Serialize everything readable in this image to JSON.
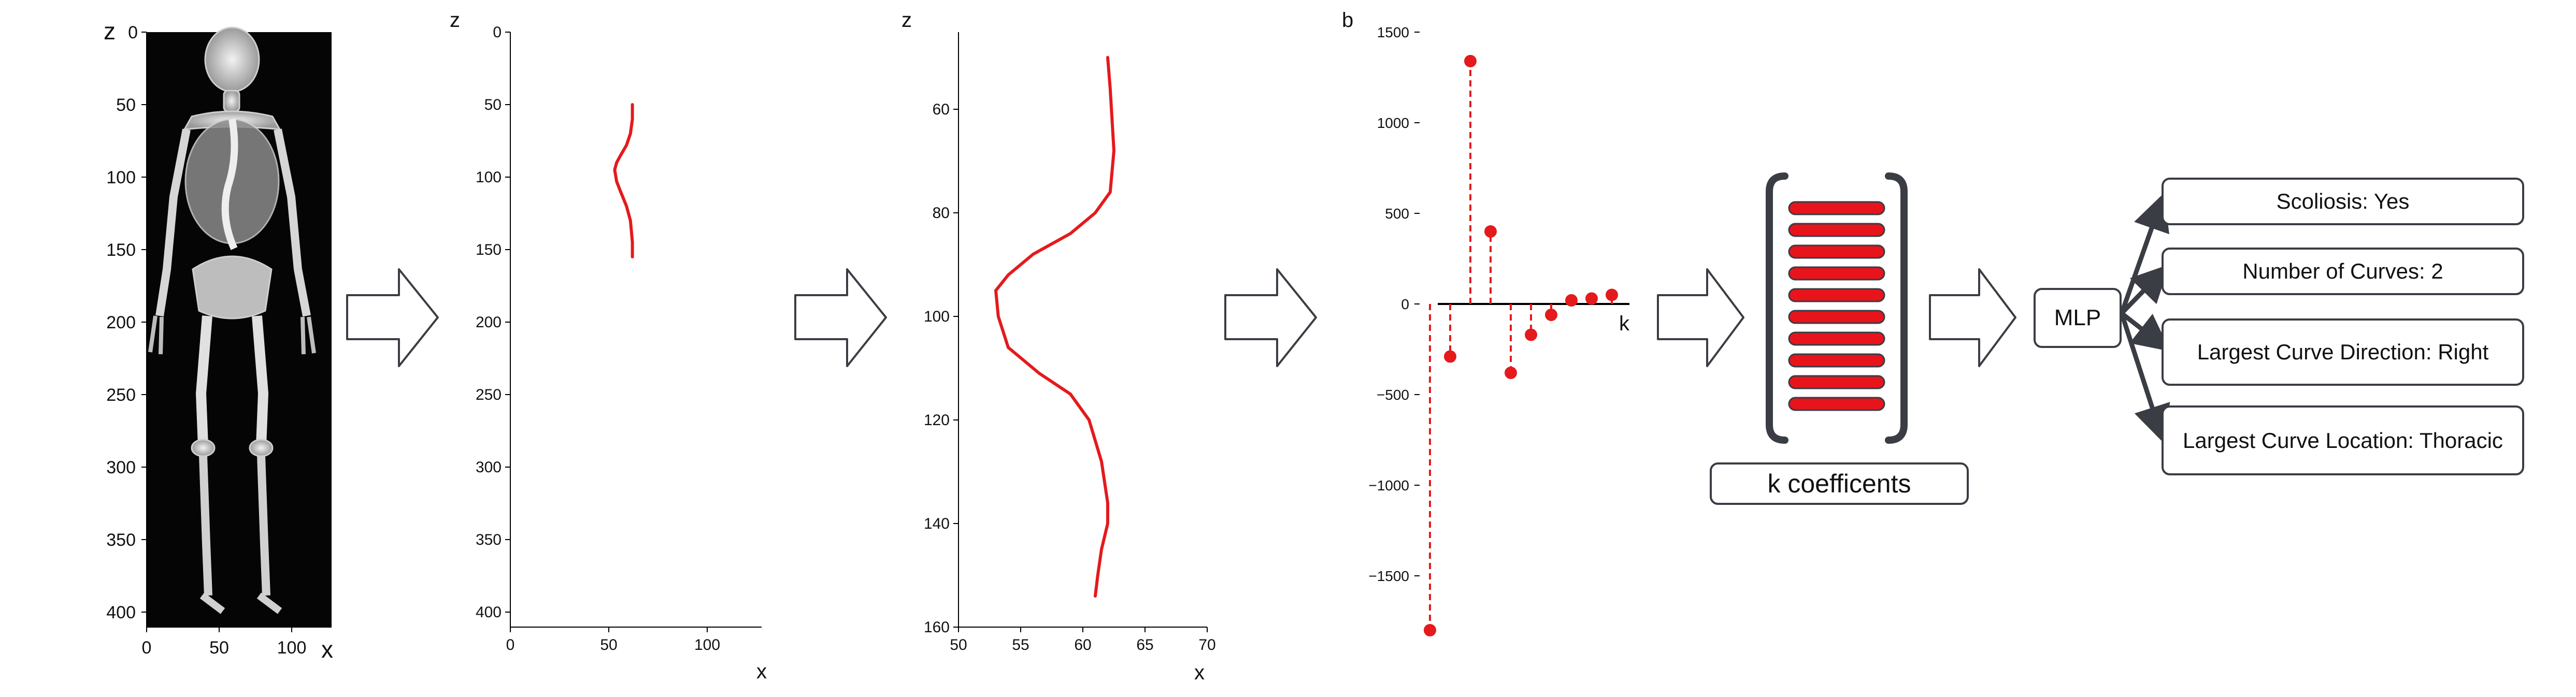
{
  "panel_label": "b",
  "scan": {
    "z_label": "z",
    "x_label": "x",
    "y_ticks": [
      "0",
      "50",
      "100",
      "150",
      "200",
      "250",
      "300",
      "350",
      "400"
    ],
    "x_ticks": [
      "0",
      "50",
      "100"
    ]
  },
  "spine_full": {
    "z_label": "z",
    "x_label": "x",
    "y_ticks": [
      "0",
      "50",
      "100",
      "150",
      "200",
      "250",
      "300",
      "350",
      "400"
    ],
    "x_ticks": [
      "0",
      "50",
      "100"
    ]
  },
  "spine_zoom": {
    "z_label": "z",
    "x_label": "x",
    "y_ticks": [
      "60",
      "80",
      "100",
      "120",
      "140",
      "160"
    ],
    "x_ticks": [
      "50",
      "55",
      "60",
      "65",
      "70"
    ]
  },
  "coeffs": {
    "k_label": "k",
    "y_ticks": [
      "1500",
      "1000",
      "500",
      "0",
      "−500",
      "−1000",
      "−1500"
    ]
  },
  "coeff_vector_label": "k coefficents",
  "mlp_label": "MLP",
  "outputs": [
    "Scoliosis: Yes",
    "Number of Curves: 2",
    "Largest Curve Direction: Right",
    "Largest Curve Location: Thoracic"
  ],
  "colors": {
    "curve": "#e41a1c",
    "box_border": "#3a3d44",
    "arrow": "#3a3d44"
  },
  "chart_data": [
    {
      "type": "line",
      "series": [
        {
          "x": [
            62,
            62,
            61,
            59,
            56,
            54,
            53,
            54,
            56,
            59,
            61,
            62,
            62
          ],
          "y": [
            50,
            60,
            70,
            78,
            85,
            90,
            95,
            103,
            110,
            120,
            130,
            145,
            155
          ]
        }
      ],
      "xlim": [
        0,
        125
      ],
      "ylim": [
        410,
        0
      ]
    },
    {
      "type": "line",
      "series": [
        {
          "x": [
            62,
            62.2,
            62.5,
            62.2,
            61,
            59,
            56,
            54,
            53,
            53.2,
            54,
            56.5,
            59,
            60.5,
            61.5,
            62,
            62,
            61.5,
            61.2,
            61
          ],
          "y": [
            50,
            56,
            68,
            76,
            80,
            84,
            88,
            92,
            95,
            100,
            106,
            111,
            115,
            120,
            128,
            136,
            140,
            145,
            150,
            154
          ]
        }
      ],
      "xlim": [
        50,
        70
      ],
      "ylim": [
        160,
        50
      ]
    },
    {
      "type": "scatter",
      "series": [
        {
          "x": [
            1,
            2,
            3,
            4,
            5,
            6,
            7,
            8,
            9,
            10
          ],
          "y": [
            -1800,
            -290,
            1340,
            400,
            -380,
            -170,
            -60,
            20,
            30,
            50
          ]
        }
      ],
      "ylim": [
        -1900,
        1500
      ]
    }
  ]
}
